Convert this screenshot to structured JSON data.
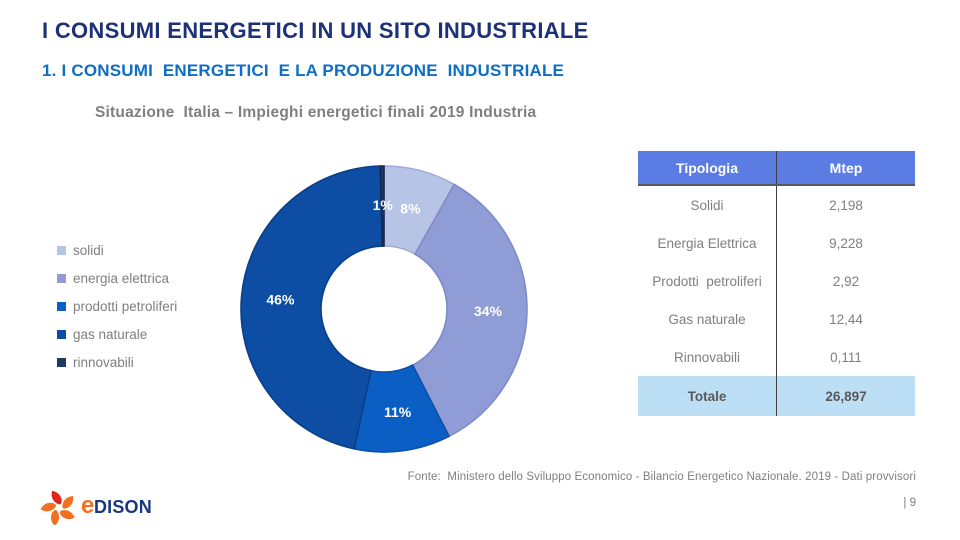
{
  "slide": {
    "title": "I CONSUMI ENERGETICI IN UN SITO INDUSTRIALE",
    "subtitle": "1. I CONSUMI  ENERGETICI  E LA PRODUZIONE  INDUSTRIALE",
    "source_note": "Fonte:  Ministero dello Sviluppo Economico - Bilancio Energetico Nazionale. 2019 - Dati provvisori",
    "page_number": "| 9"
  },
  "chart_data": {
    "type": "pie",
    "subtype": "donut",
    "title": "Situazione  Italia – Impieghi energetici finali 2019 Industria",
    "unit": "Mtep",
    "legend_position": "left",
    "total_mtep": "26,897",
    "series": [
      {
        "name": "solidi",
        "value_mtep": 2.198,
        "percent": 8,
        "label": "8%",
        "color": "#B8C4E6",
        "border_color": "#9DACD8"
      },
      {
        "name": "energia elettrica",
        "value_mtep": 9.228,
        "percent": 34,
        "label": "34%",
        "color": "#8F9CD5",
        "border_color": "#7D8BC8"
      },
      {
        "name": "prodotti petroliferi",
        "value_mtep": 2.92,
        "percent": 11,
        "label": "11%",
        "color": "#0B5EC3",
        "border_color": "#0A51A9"
      },
      {
        "name": "gas naturale",
        "value_mtep": 12.44,
        "percent": 46,
        "label": "46%",
        "color": "#0D4DA4",
        "border_color": "#0A3F88"
      },
      {
        "name": "rinnovabili",
        "value_mtep": 0.111,
        "percent": 1,
        "label": "1%",
        "color": "#1F3864",
        "border_color": "#16294B"
      }
    ]
  },
  "table": {
    "headers": [
      "Tipologia",
      "Mtep"
    ],
    "rows": [
      {
        "tipologia": "Solidi",
        "mtep": "2,198"
      },
      {
        "tipologia": "Energia Elettrica",
        "mtep": "9,228"
      },
      {
        "tipologia": "Prodotti  petroliferi",
        "mtep": "2,92"
      },
      {
        "tipologia": "Gas naturale",
        "mtep": "12,44"
      },
      {
        "tipologia": "Rinnovabili",
        "mtep": "0,111"
      }
    ],
    "total_row": {
      "tipologia": "Totale",
      "mtep": "26,897"
    },
    "header_bg": "#5B7CE2",
    "total_bg": "#BDDFF5"
  },
  "logo": {
    "text_e": "e",
    "text_rest": "DISON",
    "orange": "#F37021",
    "red": "#E1251B",
    "navy": "#17377E"
  },
  "colors": {
    "title": "#1D3176",
    "subtitle": "#0E6EC5",
    "gray_text": "#7F7F7F",
    "dark_gray_text": "#595959"
  }
}
